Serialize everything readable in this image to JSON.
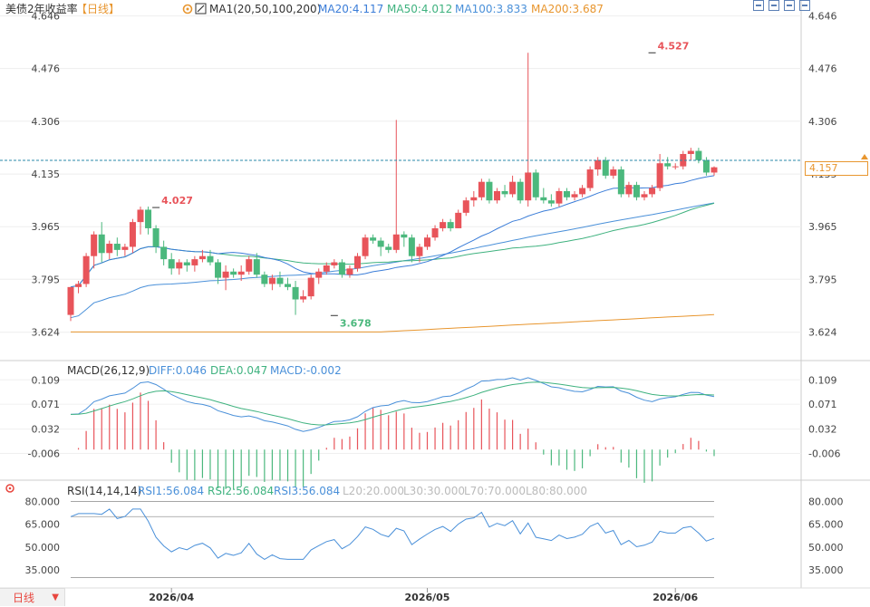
{
  "legend": {
    "title": "美债2年收益率",
    "period": "【日线】",
    "ma_label": "MA1(20,50,100,200)",
    "ma20": "MA20:4.117",
    "ma50": "MA50:4.012",
    "ma100": "MA100:3.833",
    "ma200": "MA200:3.687"
  },
  "macd_legend": {
    "title": "MACD(26,12,9)",
    "diff": "DIFF:0.046",
    "dea": "DEA:0.047",
    "macd": "MACD:-0.002"
  },
  "rsi_legend": {
    "title": "RSI(14,14,14)",
    "rsi1": "RSI1:56.084",
    "rsi2": "RSI2:56.084",
    "rsi3": "RSI3:56.084",
    "l20": "L20:20.000",
    "l30": "L30:30.000",
    "l70": "L70:70.000",
    "l80": "L80:80.000"
  },
  "period_selector": "日线",
  "current_price": "4.157",
  "colors": {
    "up": "#e8545a",
    "down": "#4bb87d",
    "ma20": "#3b7dd8",
    "ma50": "#3fb27f",
    "ma100": "#4a90d9",
    "ma200": "#e8962f",
    "macd_diff": "#4a90d9",
    "macd_dea": "#3fb27f",
    "rsi": "#4a90d9"
  },
  "chart_data": [
    {
      "type": "candlestick",
      "title": "美债2年收益率",
      "x_ticks": [
        "2026/04",
        "2026/05",
        "2026/06"
      ],
      "x_tick_index": [
        13,
        46,
        78
      ],
      "y_ticks": [
        "4.646",
        "4.476",
        "4.306",
        "4.135",
        "3.965",
        "3.795",
        "3.624"
      ],
      "ylim": [
        3.55,
        4.68
      ],
      "annotations": [
        {
          "label": "4.527",
          "index": 75,
          "value": 4.527
        },
        {
          "label": "4.027",
          "index": 11,
          "value": 4.027
        },
        {
          "label": "3.678",
          "index": 34,
          "value": 3.678
        }
      ],
      "current_value": 4.157,
      "ohlc": [
        [
          3.68,
          3.77,
          3.66,
          3.77
        ],
        [
          3.77,
          3.79,
          3.75,
          3.78
        ],
        [
          3.78,
          3.88,
          3.77,
          3.87
        ],
        [
          3.87,
          3.95,
          3.83,
          3.94
        ],
        [
          3.94,
          3.98,
          3.85,
          3.88
        ],
        [
          3.88,
          3.92,
          3.86,
          3.91
        ],
        [
          3.91,
          3.93,
          3.87,
          3.89
        ],
        [
          3.89,
          3.91,
          3.87,
          3.9
        ],
        [
          3.9,
          3.99,
          3.88,
          3.98
        ],
        [
          3.98,
          4.03,
          3.94,
          4.02
        ],
        [
          4.02,
          4.03,
          3.94,
          3.96
        ],
        [
          3.96,
          3.97,
          3.88,
          3.9
        ],
        [
          3.9,
          3.92,
          3.84,
          3.86
        ],
        [
          3.86,
          3.88,
          3.81,
          3.83
        ],
        [
          3.83,
          3.86,
          3.81,
          3.85
        ],
        [
          3.85,
          3.86,
          3.82,
          3.84
        ],
        [
          3.84,
          3.87,
          3.82,
          3.86
        ],
        [
          3.86,
          3.89,
          3.85,
          3.87
        ],
        [
          3.87,
          3.89,
          3.84,
          3.85
        ],
        [
          3.85,
          3.86,
          3.78,
          3.8
        ],
        [
          3.8,
          3.84,
          3.76,
          3.82
        ],
        [
          3.82,
          3.83,
          3.8,
          3.81
        ],
        [
          3.81,
          3.84,
          3.79,
          3.82
        ],
        [
          3.82,
          3.87,
          3.81,
          3.86
        ],
        [
          3.86,
          3.88,
          3.8,
          3.81
        ],
        [
          3.81,
          3.82,
          3.77,
          3.78
        ],
        [
          3.78,
          3.81,
          3.76,
          3.8
        ],
        [
          3.8,
          3.82,
          3.77,
          3.78
        ],
        [
          3.78,
          3.8,
          3.76,
          3.77
        ],
        [
          3.77,
          3.79,
          3.68,
          3.73
        ],
        [
          3.73,
          3.76,
          3.72,
          3.74
        ],
        [
          3.74,
          3.81,
          3.73,
          3.8
        ],
        [
          3.8,
          3.83,
          3.78,
          3.82
        ],
        [
          3.82,
          3.85,
          3.81,
          3.84
        ],
        [
          3.84,
          3.86,
          3.83,
          3.85
        ],
        [
          3.85,
          3.86,
          3.8,
          3.81
        ],
        [
          3.81,
          3.84,
          3.8,
          3.83
        ],
        [
          3.83,
          3.88,
          3.82,
          3.87
        ],
        [
          3.87,
          3.94,
          3.86,
          3.93
        ],
        [
          3.93,
          3.94,
          3.91,
          3.92
        ],
        [
          3.92,
          3.93,
          3.87,
          3.9
        ],
        [
          3.9,
          3.91,
          3.88,
          3.89
        ],
        [
          3.89,
          4.31,
          3.88,
          3.94
        ],
        [
          3.94,
          3.95,
          3.9,
          3.93
        ],
        [
          3.93,
          3.94,
          3.85,
          3.87
        ],
        [
          3.87,
          3.91,
          3.85,
          3.9
        ],
        [
          3.9,
          3.94,
          3.89,
          3.93
        ],
        [
          3.93,
          3.97,
          3.92,
          3.96
        ],
        [
          3.96,
          3.99,
          3.95,
          3.98
        ],
        [
          3.98,
          3.99,
          3.95,
          3.96
        ],
        [
          3.96,
          4.02,
          3.96,
          4.01
        ],
        [
          4.01,
          4.06,
          4.0,
          4.05
        ],
        [
          4.05,
          4.08,
          4.03,
          4.06
        ],
        [
          4.06,
          4.12,
          4.05,
          4.11
        ],
        [
          4.11,
          4.12,
          4.04,
          4.05
        ],
        [
          4.05,
          4.09,
          4.04,
          4.08
        ],
        [
          4.08,
          4.1,
          4.06,
          4.07
        ],
        [
          4.07,
          4.13,
          4.06,
          4.11
        ],
        [
          4.11,
          4.12,
          4.04,
          4.05
        ],
        [
          4.05,
          4.527,
          4.03,
          4.14
        ],
        [
          4.14,
          4.15,
          4.05,
          4.06
        ],
        [
          4.06,
          4.09,
          4.04,
          4.05
        ],
        [
          4.05,
          4.07,
          4.03,
          4.04
        ],
        [
          4.04,
          4.09,
          4.03,
          4.08
        ],
        [
          4.08,
          4.09,
          4.05,
          4.06
        ],
        [
          4.06,
          4.08,
          4.05,
          4.07
        ],
        [
          4.07,
          4.1,
          4.06,
          4.09
        ],
        [
          4.09,
          4.16,
          4.08,
          4.15
        ],
        [
          4.15,
          4.19,
          4.13,
          4.18
        ],
        [
          4.18,
          4.19,
          4.12,
          4.13
        ],
        [
          4.13,
          4.16,
          4.12,
          4.15
        ],
        [
          4.15,
          4.16,
          4.06,
          4.07
        ],
        [
          4.07,
          4.11,
          4.06,
          4.1
        ],
        [
          4.1,
          4.11,
          4.05,
          4.06
        ],
        [
          4.06,
          4.08,
          4.05,
          4.07
        ],
        [
          4.07,
          4.1,
          4.06,
          4.09
        ],
        [
          4.09,
          4.2,
          4.08,
          4.17
        ],
        [
          4.17,
          4.19,
          4.15,
          4.16
        ],
        [
          4.16,
          4.17,
          4.15,
          4.16
        ],
        [
          4.16,
          4.21,
          4.15,
          4.2
        ],
        [
          4.2,
          4.22,
          4.18,
          4.21
        ],
        [
          4.21,
          4.22,
          4.17,
          4.18
        ],
        [
          4.18,
          4.19,
          4.13,
          4.14
        ],
        [
          4.14,
          4.16,
          4.13,
          4.157
        ]
      ]
    },
    {
      "type": "bar",
      "title": "MACD(26,12,9)",
      "y_ticks": [
        "0.109",
        "0.071",
        "0.032",
        "-0.006"
      ],
      "ylim": [
        -0.045,
        0.125
      ]
    },
    {
      "type": "line",
      "title": "RSI(14,14,14)",
      "y_ticks": [
        "80.000",
        "65.000",
        "50.000",
        "35.000"
      ],
      "ylim": [
        25,
        88
      ]
    }
  ]
}
